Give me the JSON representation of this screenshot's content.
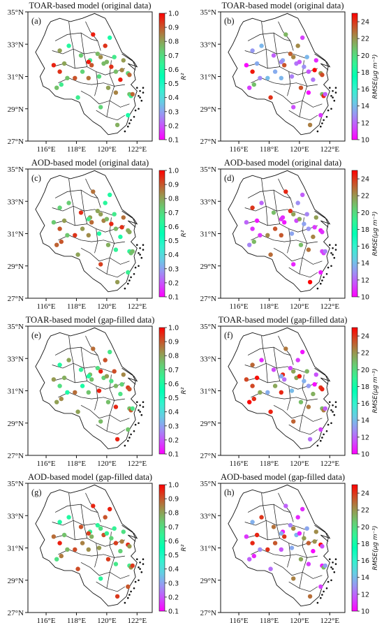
{
  "figure": {
    "panels": [
      {
        "label": "(a)",
        "title": "TOAR-based model (original data)",
        "metric": "r2",
        "variant": 0
      },
      {
        "label": "(b)",
        "title": "TOAR-based model (original data)",
        "metric": "rmse",
        "variant": 1
      },
      {
        "label": "(c)",
        "title": "AOD-based model (original data)",
        "metric": "r2",
        "variant": 2
      },
      {
        "label": "(d)",
        "title": "AOD-based model (original data)",
        "metric": "rmse",
        "variant": 3
      },
      {
        "label": "(e)",
        "title": "TOAR-based model (gap-filled data)",
        "metric": "r2",
        "variant": 4
      },
      {
        "label": "(f)",
        "title": "TOAR-based model (gap-filled data)",
        "metric": "rmse",
        "variant": 5
      },
      {
        "label": "(g)",
        "title": "AOD-based model (gap-filled data)",
        "metric": "r2",
        "variant": 6
      },
      {
        "label": "(h)",
        "title": "AOD-based model (gap-filled data)",
        "metric": "rmse",
        "variant": 7
      }
    ],
    "axes": {
      "x_ticks": [
        "116°E",
        "118°E",
        "120°E",
        "122°E"
      ],
      "x_values": [
        116,
        118,
        120,
        122
      ],
      "y_ticks": [
        "35°N",
        "33°N",
        "31°N",
        "29°N",
        "27°N"
      ],
      "y_values": [
        35,
        33,
        31,
        29,
        27
      ],
      "lon_range": [
        114.8,
        123.0
      ],
      "lat_range": [
        27,
        35
      ]
    },
    "colorbars": {
      "r2": {
        "label": "R²",
        "ticks": [
          "1.0",
          "0.9",
          "0.8",
          "0.7",
          "0.6",
          "0.5",
          "0.4",
          "0.3",
          "0.2",
          "0.1"
        ],
        "range": [
          0.1,
          1.0
        ]
      },
      "rmse": {
        "label": "RMSE(μg m⁻³)",
        "ticks": [
          "24",
          "22",
          "20",
          "18",
          "16",
          "14",
          "12",
          "10"
        ],
        "range": [
          10,
          25
        ]
      }
    },
    "colormap": "rainbow",
    "colors": {
      "outline": "#111111",
      "frame": "#111111"
    }
  }
}
